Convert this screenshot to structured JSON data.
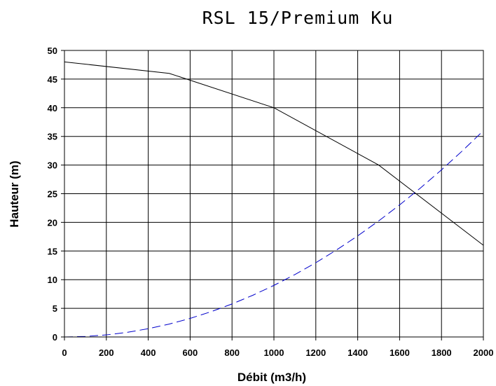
{
  "chart_data": {
    "type": "line",
    "title": "RSL 15/Premium Ku",
    "xlabel": "Débit (m3/h)",
    "ylabel": "Hauteur (m)",
    "xlim": [
      0,
      2000
    ],
    "ylim": [
      0,
      50
    ],
    "x_ticks": [
      0,
      200,
      400,
      600,
      800,
      1000,
      1200,
      1400,
      1600,
      1800,
      2000
    ],
    "y_ticks": [
      0,
      5,
      10,
      15,
      20,
      25,
      30,
      35,
      40,
      45,
      50
    ],
    "grid": true,
    "legend": "none",
    "series": [
      {
        "style": "solid",
        "color": "#000000",
        "points": [
          [
            0,
            48
          ],
          [
            500,
            46
          ],
          [
            1000,
            40
          ],
          [
            1500,
            30
          ],
          [
            2000,
            16
          ]
        ]
      },
      {
        "style": "dashed",
        "color": "#0000cc",
        "points": [
          [
            0,
            0
          ],
          [
            100,
            0.09
          ],
          [
            200,
            0.36
          ],
          [
            300,
            0.81
          ],
          [
            400,
            1.44
          ],
          [
            500,
            2.25
          ],
          [
            600,
            3.24
          ],
          [
            700,
            4.41
          ],
          [
            800,
            5.76
          ],
          [
            900,
            7.29
          ],
          [
            1000,
            9
          ],
          [
            1100,
            10.89
          ],
          [
            1200,
            12.96
          ],
          [
            1300,
            15.21
          ],
          [
            1400,
            17.64
          ],
          [
            1500,
            20.25
          ],
          [
            1600,
            23.04
          ],
          [
            1700,
            26.01
          ],
          [
            1800,
            29.16
          ],
          [
            1900,
            32.49
          ],
          [
            2000,
            36
          ]
        ]
      }
    ]
  }
}
